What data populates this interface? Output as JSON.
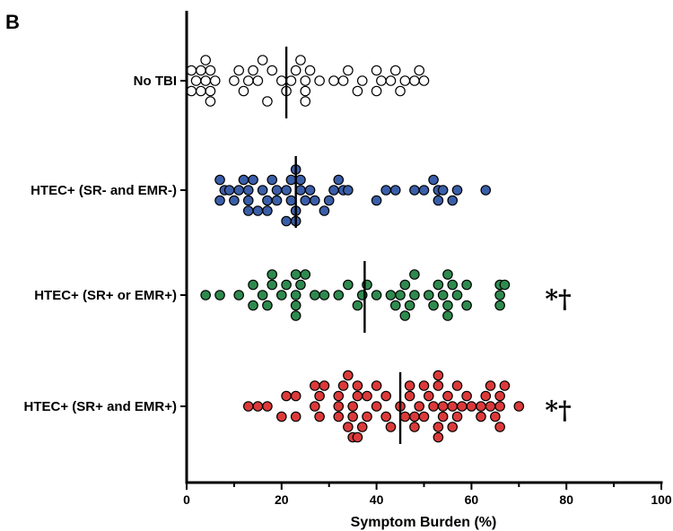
{
  "panel_label": "B",
  "chart_data": {
    "type": "scatter",
    "subtype": "dot-plot",
    "title": "",
    "xlabel": "Symptom Burden (%)",
    "ylabel": "",
    "xlim": [
      0,
      100
    ],
    "xticks": [
      "0",
      "20",
      "40",
      "60",
      "80",
      "100"
    ],
    "grid": false,
    "legend": "none",
    "series": [
      {
        "name": "No TBI",
        "color": "#ffffff",
        "stroke": "#000000",
        "median": 21,
        "annotation": "",
        "points": [
          {
            "x": 1,
            "y": 3
          },
          {
            "x": 1,
            "y": 1
          },
          {
            "x": 2,
            "y": 2
          },
          {
            "x": 3,
            "y": 3
          },
          {
            "x": 3,
            "y": 1
          },
          {
            "x": 4,
            "y": 0
          },
          {
            "x": 4,
            "y": 2
          },
          {
            "x": 5,
            "y": 3
          },
          {
            "x": 5,
            "y": 1
          },
          {
            "x": 5,
            "y": 4
          },
          {
            "x": 6,
            "y": 2
          },
          {
            "x": 10,
            "y": 2
          },
          {
            "x": 11,
            "y": 1
          },
          {
            "x": 12,
            "y": 3
          },
          {
            "x": 13,
            "y": 2
          },
          {
            "x": 14,
            "y": 1
          },
          {
            "x": 15,
            "y": 2
          },
          {
            "x": 16,
            "y": 0
          },
          {
            "x": 17,
            "y": 4
          },
          {
            "x": 18,
            "y": 1
          },
          {
            "x": 20,
            "y": 2
          },
          {
            "x": 21,
            "y": 3
          },
          {
            "x": 22,
            "y": 2
          },
          {
            "x": 23,
            "y": 1
          },
          {
            "x": 24,
            "y": 0
          },
          {
            "x": 25,
            "y": 2
          },
          {
            "x": 25,
            "y": 4
          },
          {
            "x": 25,
            "y": 3
          },
          {
            "x": 26,
            "y": 1
          },
          {
            "x": 28,
            "y": 2
          },
          {
            "x": 31,
            "y": 2
          },
          {
            "x": 33,
            "y": 2
          },
          {
            "x": 34,
            "y": 1
          },
          {
            "x": 36,
            "y": 3
          },
          {
            "x": 37,
            "y": 2
          },
          {
            "x": 40,
            "y": 3
          },
          {
            "x": 40,
            "y": 1
          },
          {
            "x": 41,
            "y": 2
          },
          {
            "x": 43,
            "y": 2
          },
          {
            "x": 44,
            "y": 1
          },
          {
            "x": 45,
            "y": 3
          },
          {
            "x": 46,
            "y": 2
          },
          {
            "x": 48,
            "y": 2
          },
          {
            "x": 49,
            "y": 1
          },
          {
            "x": 50,
            "y": 2
          }
        ]
      },
      {
        "name": "HTEC+ (SR- and EMR-)",
        "color": "#3a5ea8",
        "stroke": "#000000",
        "median": 23,
        "annotation": "",
        "points": [
          {
            "x": 7,
            "y": 3
          },
          {
            "x": 7,
            "y": 1
          },
          {
            "x": 8,
            "y": 2
          },
          {
            "x": 9,
            "y": 2
          },
          {
            "x": 10,
            "y": 3
          },
          {
            "x": 11,
            "y": 2
          },
          {
            "x": 12,
            "y": 1
          },
          {
            "x": 13,
            "y": 2
          },
          {
            "x": 13,
            "y": 3
          },
          {
            "x": 13,
            "y": 4
          },
          {
            "x": 14,
            "y": 1
          },
          {
            "x": 15,
            "y": 4
          },
          {
            "x": 16,
            "y": 2
          },
          {
            "x": 17,
            "y": 3
          },
          {
            "x": 17,
            "y": 4
          },
          {
            "x": 18,
            "y": 1
          },
          {
            "x": 19,
            "y": 2
          },
          {
            "x": 19,
            "y": 3
          },
          {
            "x": 21,
            "y": 5
          },
          {
            "x": 21,
            "y": 2
          },
          {
            "x": 22,
            "y": 1
          },
          {
            "x": 22,
            "y": 3
          },
          {
            "x": 23,
            "y": 0
          },
          {
            "x": 23,
            "y": 4
          },
          {
            "x": 23,
            "y": 5
          },
          {
            "x": 24,
            "y": 1
          },
          {
            "x": 24,
            "y": 2
          },
          {
            "x": 25,
            "y": 3
          },
          {
            "x": 26,
            "y": 2
          },
          {
            "x": 27,
            "y": 3
          },
          {
            "x": 29,
            "y": 4
          },
          {
            "x": 30,
            "y": 3
          },
          {
            "x": 31,
            "y": 2
          },
          {
            "x": 32,
            "y": 1
          },
          {
            "x": 33,
            "y": 2
          },
          {
            "x": 34,
            "y": 2
          },
          {
            "x": 40,
            "y": 3
          },
          {
            "x": 42,
            "y": 2
          },
          {
            "x": 44,
            "y": 2
          },
          {
            "x": 48,
            "y": 2
          },
          {
            "x": 50,
            "y": 2
          },
          {
            "x": 52,
            "y": 1
          },
          {
            "x": 53,
            "y": 3
          },
          {
            "x": 53,
            "y": 2
          },
          {
            "x": 54,
            "y": 2
          },
          {
            "x": 56,
            "y": 3
          },
          {
            "x": 57,
            "y": 2
          },
          {
            "x": 63,
            "y": 2
          }
        ]
      },
      {
        "name": "HTEC+ (SR+ or EMR+)",
        "color": "#2e8a4e",
        "stroke": "#000000",
        "median": 37.5,
        "annotation": "*†",
        "points": [
          {
            "x": 4,
            "y": 2
          },
          {
            "x": 7,
            "y": 2
          },
          {
            "x": 11,
            "y": 2
          },
          {
            "x": 14,
            "y": 3
          },
          {
            "x": 14,
            "y": 1
          },
          {
            "x": 16,
            "y": 2
          },
          {
            "x": 17,
            "y": 3
          },
          {
            "x": 18,
            "y": 0
          },
          {
            "x": 18,
            "y": 1
          },
          {
            "x": 20,
            "y": 2
          },
          {
            "x": 21,
            "y": 1
          },
          {
            "x": 23,
            "y": 4
          },
          {
            "x": 23,
            "y": 3
          },
          {
            "x": 23,
            "y": 2
          },
          {
            "x": 23,
            "y": 0
          },
          {
            "x": 24,
            "y": 1
          },
          {
            "x": 25,
            "y": 0
          },
          {
            "x": 27,
            "y": 2
          },
          {
            "x": 29,
            "y": 2
          },
          {
            "x": 32,
            "y": 2
          },
          {
            "x": 34,
            "y": 1
          },
          {
            "x": 36,
            "y": 3
          },
          {
            "x": 37,
            "y": 2
          },
          {
            "x": 38,
            "y": 1
          },
          {
            "x": 40,
            "y": 2
          },
          {
            "x": 43,
            "y": 2
          },
          {
            "x": 44,
            "y": 3
          },
          {
            "x": 45,
            "y": 2
          },
          {
            "x": 46,
            "y": 4
          },
          {
            "x": 46,
            "y": 1
          },
          {
            "x": 47,
            "y": 3
          },
          {
            "x": 48,
            "y": 2
          },
          {
            "x": 48,
            "y": 0
          },
          {
            "x": 51,
            "y": 2
          },
          {
            "x": 52,
            "y": 3
          },
          {
            "x": 53,
            "y": 1
          },
          {
            "x": 54,
            "y": 2
          },
          {
            "x": 55,
            "y": 4
          },
          {
            "x": 55,
            "y": 3
          },
          {
            "x": 55,
            "y": 0
          },
          {
            "x": 56,
            "y": 1
          },
          {
            "x": 57,
            "y": 2
          },
          {
            "x": 59,
            "y": 3
          },
          {
            "x": 59,
            "y": 1
          },
          {
            "x": 66,
            "y": 3
          },
          {
            "x": 66,
            "y": 2
          },
          {
            "x": 66,
            "y": 1
          },
          {
            "x": 67,
            "y": 1
          }
        ]
      },
      {
        "name": "HTEC+ (SR+ and EMR+)",
        "color": "#dc3a3a",
        "stroke": "#000000",
        "median": 45,
        "annotation": "*†",
        "points": [
          {
            "x": 13,
            "y": 2
          },
          {
            "x": 15,
            "y": 2
          },
          {
            "x": 17,
            "y": 2
          },
          {
            "x": 20,
            "y": 3
          },
          {
            "x": 21,
            "y": 1
          },
          {
            "x": 23,
            "y": 3
          },
          {
            "x": 23,
            "y": 1
          },
          {
            "x": 27,
            "y": 2
          },
          {
            "x": 27,
            "y": 0
          },
          {
            "x": 28,
            "y": 3
          },
          {
            "x": 28,
            "y": 1
          },
          {
            "x": 29,
            "y": 0
          },
          {
            "x": 32,
            "y": 2
          },
          {
            "x": 32,
            "y": 1
          },
          {
            "x": 32,
            "y": 3
          },
          {
            "x": 33,
            "y": 0
          },
          {
            "x": 34,
            "y": -1
          },
          {
            "x": 34,
            "y": 4
          },
          {
            "x": 35,
            "y": 5
          },
          {
            "x": 35,
            "y": 3
          },
          {
            "x": 35,
            "y": 2
          },
          {
            "x": 36,
            "y": 1
          },
          {
            "x": 36,
            "y": 5
          },
          {
            "x": 36,
            "y": 0
          },
          {
            "x": 37,
            "y": 4
          },
          {
            "x": 38,
            "y": 3
          },
          {
            "x": 38,
            "y": 1
          },
          {
            "x": 40,
            "y": 2
          },
          {
            "x": 40,
            "y": 0
          },
          {
            "x": 42,
            "y": 3
          },
          {
            "x": 42,
            "y": 1
          },
          {
            "x": 43,
            "y": 4
          },
          {
            "x": 45,
            "y": 2
          },
          {
            "x": 46,
            "y": 3
          },
          {
            "x": 47,
            "y": 1
          },
          {
            "x": 47,
            "y": 0
          },
          {
            "x": 48,
            "y": 3
          },
          {
            "x": 48,
            "y": 4
          },
          {
            "x": 49,
            "y": 2
          },
          {
            "x": 50,
            "y": 3
          },
          {
            "x": 50,
            "y": 0
          },
          {
            "x": 51,
            "y": 1
          },
          {
            "x": 52,
            "y": 2
          },
          {
            "x": 53,
            "y": 5
          },
          {
            "x": 53,
            "y": 4
          },
          {
            "x": 53,
            "y": 0
          },
          {
            "x": 53,
            "y": -1
          },
          {
            "x": 54,
            "y": 3
          },
          {
            "x": 54,
            "y": 2
          },
          {
            "x": 55,
            "y": 1
          },
          {
            "x": 56,
            "y": 2
          },
          {
            "x": 56,
            "y": 4
          },
          {
            "x": 57,
            "y": 0
          },
          {
            "x": 57,
            "y": 3
          },
          {
            "x": 58,
            "y": 2
          },
          {
            "x": 59,
            "y": 1
          },
          {
            "x": 60,
            "y": 2
          },
          {
            "x": 62,
            "y": 3
          },
          {
            "x": 62,
            "y": 2
          },
          {
            "x": 63,
            "y": 1
          },
          {
            "x": 64,
            "y": 2
          },
          {
            "x": 64,
            "y": 0
          },
          {
            "x": 65,
            "y": 3
          },
          {
            "x": 66,
            "y": 4
          },
          {
            "x": 66,
            "y": 1
          },
          {
            "x": 66,
            "y": 2
          },
          {
            "x": 67,
            "y": 0
          },
          {
            "x": 70,
            "y": 2
          }
        ]
      }
    ]
  }
}
